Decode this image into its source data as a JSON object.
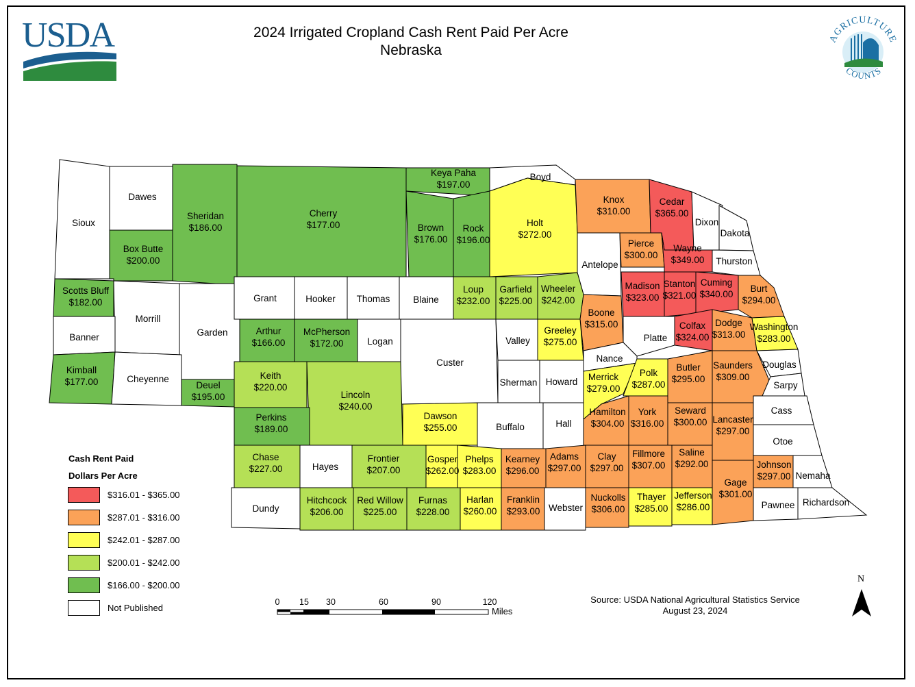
{
  "title": "2024 Irrigated Cropland Cash Rent Paid Per Acre",
  "subtitle": "Nebraska",
  "logos": {
    "usda": "USDA",
    "ag_counts_top": "AGRICULTURE",
    "ag_counts_bottom": "COUNTS"
  },
  "legend": {
    "title": "Cash Rent Paid",
    "subtitle": "Dollars Per Acre",
    "classes": [
      {
        "id": "c1",
        "label": "$316.01 - $365.00",
        "color": "#f45a5a"
      },
      {
        "id": "c2",
        "label": "$287.01 - $316.00",
        "color": "#fba258"
      },
      {
        "id": "c3",
        "label": "$242.01 - $287.00",
        "color": "#ffff55"
      },
      {
        "id": "c4",
        "label": "$200.01 - $242.00",
        "color": "#b5e056"
      },
      {
        "id": "c5",
        "label": "$166.00 - $200.00",
        "color": "#70be50"
      },
      {
        "id": "np",
        "label": "Not Published",
        "color": "#ffffff"
      }
    ]
  },
  "scale_bar": {
    "ticks": [
      "0",
      "15",
      "30",
      "60",
      "90",
      "120"
    ],
    "unit": "Miles"
  },
  "north_arrow": "N",
  "source": {
    "line1": "Source: USDA National Agricultural Statistics Service",
    "line2": "August 23, 2024"
  },
  "counties": [
    {
      "name": "Sioux",
      "value": "",
      "cls": "np"
    },
    {
      "name": "Dawes",
      "value": "",
      "cls": "np"
    },
    {
      "name": "Box Butte",
      "value": "$200.00",
      "cls": "c5"
    },
    {
      "name": "Sheridan",
      "value": "$186.00",
      "cls": "c5"
    },
    {
      "name": "Cherry",
      "value": "$177.00",
      "cls": "c5"
    },
    {
      "name": "Keya Paha",
      "value": "$197.00",
      "cls": "c5"
    },
    {
      "name": "Boyd",
      "value": "",
      "cls": "np"
    },
    {
      "name": "Brown",
      "value": "$176.00",
      "cls": "c5"
    },
    {
      "name": "Rock",
      "value": "$196.00",
      "cls": "c5"
    },
    {
      "name": "Holt",
      "value": "$272.00",
      "cls": "c3"
    },
    {
      "name": "Knox",
      "value": "$310.00",
      "cls": "c2"
    },
    {
      "name": "Cedar",
      "value": "$365.00",
      "cls": "c1"
    },
    {
      "name": "Dixon",
      "value": "",
      "cls": "np"
    },
    {
      "name": "Dakota",
      "value": "",
      "cls": "np"
    },
    {
      "name": "Antelope",
      "value": "",
      "cls": "np"
    },
    {
      "name": "Pierce",
      "value": "$300.00",
      "cls": "c2"
    },
    {
      "name": "Wayne",
      "value": "$349.00",
      "cls": "c1"
    },
    {
      "name": "Thurston",
      "value": "",
      "cls": "np"
    },
    {
      "name": "Scotts Bluff",
      "value": "$182.00",
      "cls": "c5"
    },
    {
      "name": "Morrill",
      "value": "",
      "cls": "np"
    },
    {
      "name": "Garden",
      "value": "",
      "cls": "np"
    },
    {
      "name": "Grant",
      "value": "",
      "cls": "np"
    },
    {
      "name": "Hooker",
      "value": "",
      "cls": "np"
    },
    {
      "name": "Thomas",
      "value": "",
      "cls": "np"
    },
    {
      "name": "Blaine",
      "value": "",
      "cls": "np"
    },
    {
      "name": "Loup",
      "value": "$232.00",
      "cls": "c4"
    },
    {
      "name": "Garfield",
      "value": "$225.00",
      "cls": "c4"
    },
    {
      "name": "Wheeler",
      "value": "$242.00",
      "cls": "c4"
    },
    {
      "name": "Boone",
      "value": "$315.00",
      "cls": "c2"
    },
    {
      "name": "Madison",
      "value": "$323.00",
      "cls": "c1"
    },
    {
      "name": "Stanton",
      "value": "$321.00",
      "cls": "c1"
    },
    {
      "name": "Cuming",
      "value": "$340.00",
      "cls": "c1"
    },
    {
      "name": "Burt",
      "value": "$294.00",
      "cls": "c2"
    },
    {
      "name": "Banner",
      "value": "",
      "cls": "np"
    },
    {
      "name": "Arthur",
      "value": "$166.00",
      "cls": "c5"
    },
    {
      "name": "McPherson",
      "value": "$172.00",
      "cls": "c5"
    },
    {
      "name": "Logan",
      "value": "",
      "cls": "np"
    },
    {
      "name": "Custer",
      "value": "",
      "cls": "np"
    },
    {
      "name": "Valley",
      "value": "",
      "cls": "np"
    },
    {
      "name": "Greeley",
      "value": "$275.00",
      "cls": "c3"
    },
    {
      "name": "Platte",
      "value": "",
      "cls": "np"
    },
    {
      "name": "Colfax",
      "value": "$324.00",
      "cls": "c1"
    },
    {
      "name": "Dodge",
      "value": "$313.00",
      "cls": "c2"
    },
    {
      "name": "Washington",
      "value": "$283.00",
      "cls": "c3"
    },
    {
      "name": "Kimball",
      "value": "$177.00",
      "cls": "c5"
    },
    {
      "name": "Cheyenne",
      "value": "",
      "cls": "np"
    },
    {
      "name": "Deuel",
      "value": "$195.00",
      "cls": "c5"
    },
    {
      "name": "Keith",
      "value": "$220.00",
      "cls": "c4"
    },
    {
      "name": "Lincoln",
      "value": "$240.00",
      "cls": "c4"
    },
    {
      "name": "Sherman",
      "value": "",
      "cls": "np"
    },
    {
      "name": "Howard",
      "value": "",
      "cls": "np"
    },
    {
      "name": "Nance",
      "value": "",
      "cls": "np"
    },
    {
      "name": "Merrick",
      "value": "$279.00",
      "cls": "c3"
    },
    {
      "name": "Polk",
      "value": "$287.00",
      "cls": "c3"
    },
    {
      "name": "Butler",
      "value": "$295.00",
      "cls": "c2"
    },
    {
      "name": "Saunders",
      "value": "$309.00",
      "cls": "c2"
    },
    {
      "name": "Douglas",
      "value": "",
      "cls": "np"
    },
    {
      "name": "Sarpy",
      "value": "",
      "cls": "np"
    },
    {
      "name": "Perkins",
      "value": "$189.00",
      "cls": "c5"
    },
    {
      "name": "Dawson",
      "value": "$255.00",
      "cls": "c3"
    },
    {
      "name": "Buffalo",
      "value": "",
      "cls": "np"
    },
    {
      "name": "Hall",
      "value": "",
      "cls": "np"
    },
    {
      "name": "Hamilton",
      "value": "$304.00",
      "cls": "c2"
    },
    {
      "name": "York",
      "value": "$316.00",
      "cls": "c2"
    },
    {
      "name": "Seward",
      "value": "$300.00",
      "cls": "c2"
    },
    {
      "name": "Lancaster",
      "value": "$297.00",
      "cls": "c2"
    },
    {
      "name": "Cass",
      "value": "",
      "cls": "np"
    },
    {
      "name": "Otoe",
      "value": "",
      "cls": "np"
    },
    {
      "name": "Chase",
      "value": "$227.00",
      "cls": "c4"
    },
    {
      "name": "Hayes",
      "value": "",
      "cls": "np"
    },
    {
      "name": "Frontier",
      "value": "$207.00",
      "cls": "c4"
    },
    {
      "name": "Gosper",
      "value": "$262.00",
      "cls": "c3"
    },
    {
      "name": "Phelps",
      "value": "$283.00",
      "cls": "c3"
    },
    {
      "name": "Kearney",
      "value": "$296.00",
      "cls": "c2"
    },
    {
      "name": "Adams",
      "value": "$297.00",
      "cls": "c2"
    },
    {
      "name": "Clay",
      "value": "$297.00",
      "cls": "c2"
    },
    {
      "name": "Fillmore",
      "value": "$307.00",
      "cls": "c2"
    },
    {
      "name": "Saline",
      "value": "$292.00",
      "cls": "c2"
    },
    {
      "name": "Johnson",
      "value": "$297.00",
      "cls": "c2"
    },
    {
      "name": "Nemaha",
      "value": "",
      "cls": "np"
    },
    {
      "name": "Dundy",
      "value": "",
      "cls": "np"
    },
    {
      "name": "Hitchcock",
      "value": "$206.00",
      "cls": "c4"
    },
    {
      "name": "Red Willow",
      "value": "$225.00",
      "cls": "c4"
    },
    {
      "name": "Furnas",
      "value": "$228.00",
      "cls": "c4"
    },
    {
      "name": "Harlan",
      "value": "$260.00",
      "cls": "c3"
    },
    {
      "name": "Franklin",
      "value": "$293.00",
      "cls": "c2"
    },
    {
      "name": "Webster",
      "value": "",
      "cls": "np"
    },
    {
      "name": "Nuckolls",
      "value": "$306.00",
      "cls": "c2"
    },
    {
      "name": "Thayer",
      "value": "$285.00",
      "cls": "c3"
    },
    {
      "name": "Jefferson",
      "value": "$286.00",
      "cls": "c3"
    },
    {
      "name": "Gage",
      "value": "$301.00",
      "cls": "c2"
    },
    {
      "name": "Pawnee",
      "value": "",
      "cls": "np"
    },
    {
      "name": "Richardson",
      "value": "",
      "cls": "np"
    }
  ]
}
